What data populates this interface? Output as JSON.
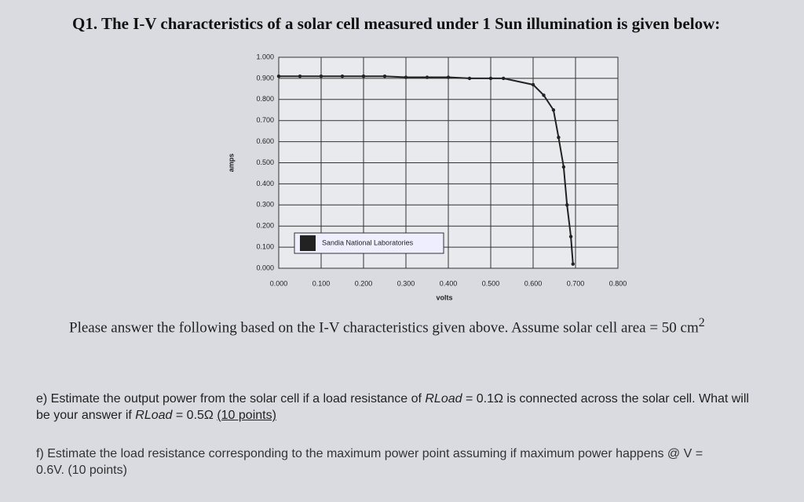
{
  "question": "Q1. The I-V characteristics of a solar cell measured under 1 Sun illumination is given below:",
  "chart_data": {
    "type": "line",
    "x_label": "volts",
    "y_label": "amps",
    "annotation": "Sandia National Laboratories",
    "xlim": [
      0,
      0.8
    ],
    "ylim": [
      0,
      1
    ],
    "xticks": [
      {
        "value": 0,
        "label": "0.000"
      },
      {
        "value": 0.1,
        "label": "0.100"
      },
      {
        "value": 0.2,
        "label": "0.200"
      },
      {
        "value": 0.3,
        "label": "0.300"
      },
      {
        "value": 0.4,
        "label": "0.400"
      },
      {
        "value": 0.5,
        "label": "0.500"
      },
      {
        "value": 0.6,
        "label": "0.600"
      },
      {
        "value": 0.7,
        "label": "0.700"
      },
      {
        "value": 0.8,
        "label": "0.800"
      }
    ],
    "yticks": [
      {
        "value": 0,
        "label": "0.000"
      },
      {
        "value": 0.1,
        "label": "0.100"
      },
      {
        "value": 0.2,
        "label": "0.200"
      },
      {
        "value": 0.3,
        "label": "0.300"
      },
      {
        "value": 0.4,
        "label": "0.400"
      },
      {
        "value": 0.5,
        "label": "0.500"
      },
      {
        "value": 0.6,
        "label": "0.600"
      },
      {
        "value": 0.7,
        "label": "0.700"
      },
      {
        "value": 0.8,
        "label": "0.800"
      },
      {
        "value": 0.9,
        "label": "0.900"
      },
      {
        "value": 1,
        "label": "1.000"
      }
    ],
    "grid": true,
    "series": [
      {
        "color": "#222222",
        "x": [
          0,
          0.05,
          0.1,
          0.15,
          0.2,
          0.25,
          0.3,
          0.35,
          0.4,
          0.45,
          0.5,
          0.53,
          0.6,
          0.625,
          0.648,
          0.66,
          0.672,
          0.68,
          0.689,
          0.694
        ],
        "values": [
          0.91,
          0.91,
          0.91,
          0.91,
          0.91,
          0.91,
          0.905,
          0.905,
          0.905,
          0.9,
          0.9,
          0.9,
          0.87,
          0.82,
          0.75,
          0.62,
          0.48,
          0.3,
          0.15,
          0.02
        ]
      }
    ]
  },
  "paragraph": "Please answer the following based on the I-V characteristics given above. Assume solar cell area = 50 cm",
  "paragraph_sup": "2",
  "part_e": [
    "e) Estimate the output power from the solar cell if a load resistance of ",
    "RLoad",
    " = 0.1Ω is connected across the solar cell. What will be your answer if ",
    "RLoad",
    " = 0.5Ω ",
    "(10 points)"
  ],
  "part_f": "f) Estimate the load resistance corresponding to the maximum power point assuming if maximum power happens @ V = 0.6V. (10 points)"
}
